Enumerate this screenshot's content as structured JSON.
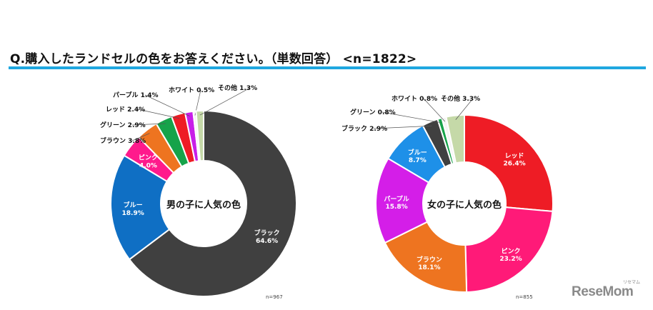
{
  "question": "Q.購入したランドセルの色をお答えください。（単数回答） <n=1822>",
  "logo": "ReseMom",
  "logo_small": "リセマム",
  "colors": {
    "accent_rule": "#1fa7e0"
  },
  "chart_data": [
    {
      "type": "pie",
      "donut": true,
      "center_label": "男の子に人気の色",
      "n_note": "n=967",
      "slices": [
        {
          "label": "ブラック",
          "value": 64.6,
          "display": "64.6%",
          "color": "#404040"
        },
        {
          "label": "ブルー",
          "value": 18.9,
          "display": "18.9%",
          "color": "#0f6fc4"
        },
        {
          "label": "ピンク",
          "value": 4.0,
          "display": "4.0%",
          "color": "#ff1a8c"
        },
        {
          "label": "ブラウン",
          "value": 3.8,
          "display": "3.8%",
          "color": "#ee7420"
        },
        {
          "label": "グリーン",
          "value": 2.9,
          "display": "2.9%",
          "color": "#16a34a"
        },
        {
          "label": "レッド",
          "value": 2.4,
          "display": "2.4%",
          "color": "#ee1c25"
        },
        {
          "label": "パープル",
          "value": 1.4,
          "display": "1.4%",
          "color": "#c81ee8"
        },
        {
          "label": "ホワイト",
          "value": 0.5,
          "display": "0.5%",
          "color": "#f4f4f4"
        },
        {
          "label": "その他",
          "value": 1.3,
          "display": "1.3%",
          "color": "#c5d9a8"
        }
      ]
    },
    {
      "type": "pie",
      "donut": true,
      "center_label": "女の子に人気の色",
      "n_note": "n=855",
      "slices": [
        {
          "label": "レッド",
          "value": 26.4,
          "display": "26.4%",
          "color": "#ee1c25"
        },
        {
          "label": "ピンク",
          "value": 23.2,
          "display": "23.2%",
          "color": "#ff1a78"
        },
        {
          "label": "ブラウン",
          "value": 18.1,
          "display": "18.1%",
          "color": "#ee7420"
        },
        {
          "label": "パープル",
          "value": 15.8,
          "display": "15.8%",
          "color": "#d41ee8"
        },
        {
          "label": "ブルー",
          "value": 8.7,
          "display": "8.7%",
          "color": "#1e90e8"
        },
        {
          "label": "ブラック",
          "value": 2.9,
          "display": "2.9%",
          "color": "#404040"
        },
        {
          "label": "グリーン",
          "value": 0.8,
          "display": "0.8%",
          "color": "#16a34a"
        },
        {
          "label": "ホワイト",
          "value": 0.8,
          "display": "0.8%",
          "color": "#f4f4f4"
        },
        {
          "label": "その他",
          "value": 3.3,
          "display": "3.3%",
          "color": "#c5d9a8"
        }
      ]
    }
  ]
}
